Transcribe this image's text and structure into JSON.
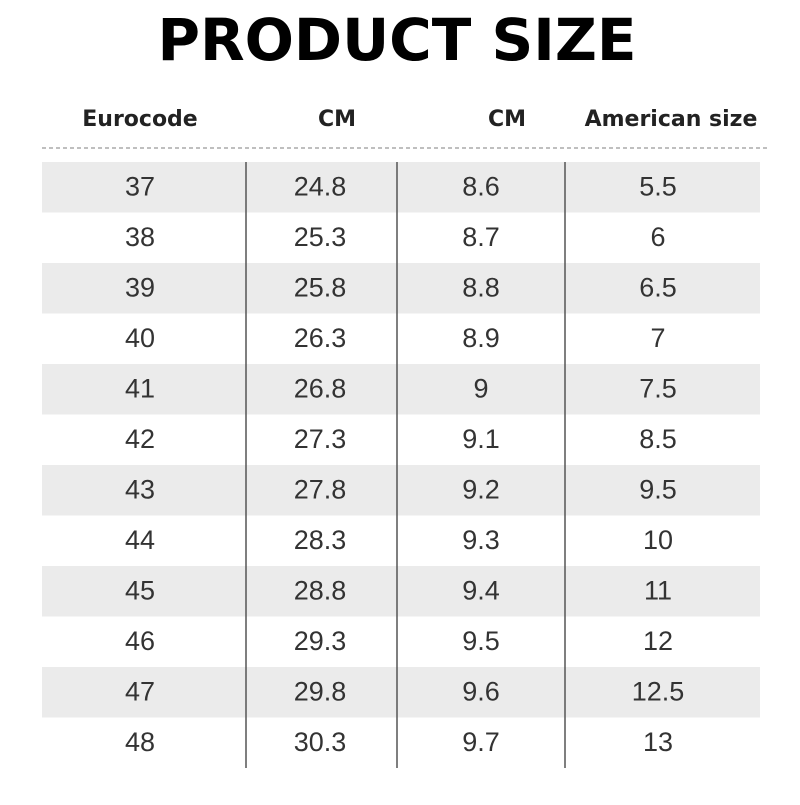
{
  "title": "PRODUCT SIZE",
  "table": {
    "header": [
      "Eurocode",
      "CM",
      "CM",
      "American size"
    ],
    "rows": [
      [
        "37",
        "24.8",
        "8.6",
        "5.5"
      ],
      [
        "38",
        "25.3",
        "8.7",
        "6"
      ],
      [
        "39",
        "25.8",
        "8.8",
        "6.5"
      ],
      [
        "40",
        "26.3",
        "8.9",
        "7"
      ],
      [
        "41",
        "26.8",
        "9",
        "7.5"
      ],
      [
        "42",
        "27.3",
        "9.1",
        "8.5"
      ],
      [
        "43",
        "27.8",
        "9.2",
        "9.5"
      ],
      [
        "44",
        "28.3",
        "9.3",
        "10"
      ],
      [
        "45",
        "28.8",
        "9.4",
        "11"
      ],
      [
        "46",
        "29.3",
        "9.5",
        "12"
      ],
      [
        "47",
        "29.8",
        "9.6",
        "12.5"
      ],
      [
        "48",
        "30.3",
        "9.7",
        "13"
      ]
    ]
  }
}
